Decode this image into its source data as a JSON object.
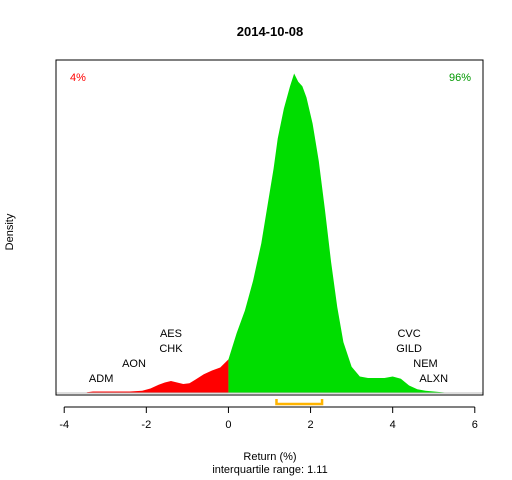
{
  "chart_data": {
    "type": "area",
    "title": "2014-10-08",
    "xlabel": "Return (%)",
    "subtitle": "interquartile range: 1.11",
    "ylabel": "Density",
    "xlim": [
      -4.2,
      6.2
    ],
    "ylim": [
      0,
      0.445
    ],
    "x_ticks": [
      -4,
      -2,
      0,
      2,
      4,
      6
    ],
    "grid": false,
    "split_at": 0,
    "colors": {
      "negative": "#ff0000",
      "positive": "#00dd00",
      "iqr": "#ffb400",
      "baseline": "#bebebe"
    },
    "left_percent": "4%",
    "right_percent": "96%",
    "iqr_range": [
      1.17,
      2.28
    ],
    "density": {
      "x": [
        -3.45,
        -3.3,
        -3.0,
        -2.7,
        -2.4,
        -2.1,
        -1.9,
        -1.7,
        -1.55,
        -1.4,
        -1.25,
        -1.1,
        -0.95,
        -0.8,
        -0.6,
        -0.4,
        -0.2,
        0.0,
        0.2,
        0.4,
        0.6,
        0.8,
        0.95,
        1.1,
        1.2,
        1.35,
        1.5,
        1.6,
        1.7,
        1.8,
        1.9,
        2.05,
        2.2,
        2.35,
        2.5,
        2.65,
        2.8,
        3.0,
        3.2,
        3.4,
        3.6,
        3.8,
        4.0,
        4.2,
        4.4,
        4.6,
        4.8,
        5.0,
        5.2,
        5.4
      ],
      "y": [
        0.001,
        0.002,
        0.002,
        0.002,
        0.002,
        0.003,
        0.006,
        0.011,
        0.014,
        0.016,
        0.014,
        0.012,
        0.013,
        0.018,
        0.025,
        0.03,
        0.034,
        0.045,
        0.08,
        0.11,
        0.15,
        0.2,
        0.25,
        0.3,
        0.34,
        0.38,
        0.41,
        0.427,
        0.416,
        0.41,
        0.395,
        0.36,
        0.31,
        0.245,
        0.175,
        0.115,
        0.068,
        0.035,
        0.022,
        0.02,
        0.02,
        0.02,
        0.022,
        0.019,
        0.01,
        0.005,
        0.003,
        0.002,
        0.001,
        0.0
      ]
    },
    "tickers": [
      {
        "label": "ADM",
        "x": -3.1,
        "y": 0.015
      },
      {
        "label": "AON",
        "x": -2.3,
        "y": 0.035
      },
      {
        "label": "CHK",
        "x": -1.4,
        "y": 0.055
      },
      {
        "label": "AES",
        "x": -1.4,
        "y": 0.075
      },
      {
        "label": "CVC",
        "x": 4.4,
        "y": 0.075
      },
      {
        "label": "GILD",
        "x": 4.4,
        "y": 0.055
      },
      {
        "label": "NEM",
        "x": 4.8,
        "y": 0.035
      },
      {
        "label": "ALXN",
        "x": 5.0,
        "y": 0.015
      }
    ]
  }
}
